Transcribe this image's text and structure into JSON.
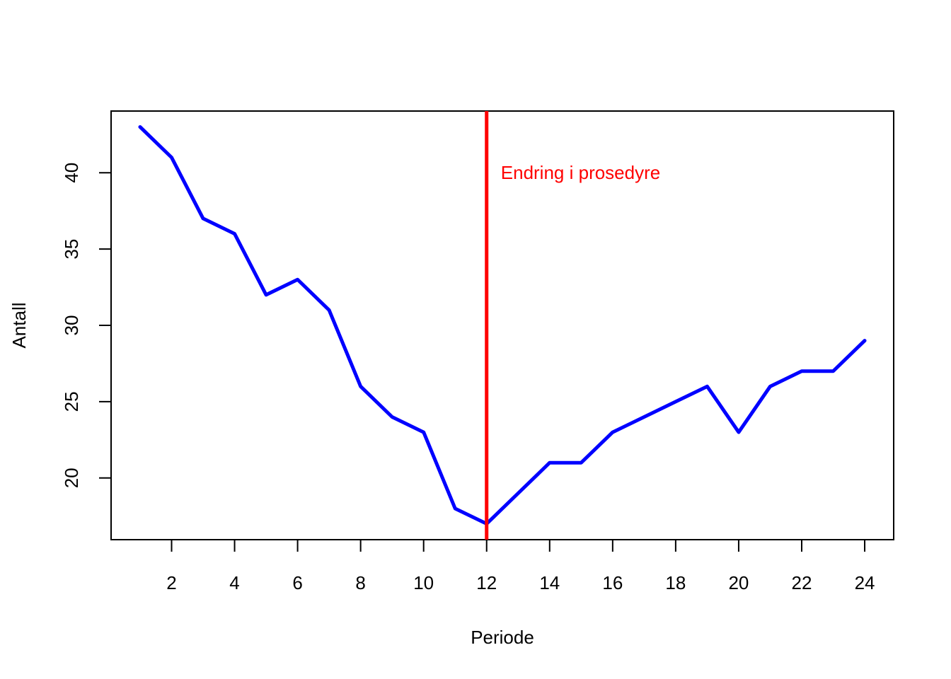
{
  "chart_data": {
    "type": "line",
    "x": [
      1,
      2,
      3,
      4,
      5,
      6,
      7,
      8,
      9,
      10,
      11,
      12,
      13,
      14,
      15,
      16,
      17,
      18,
      19,
      20,
      21,
      22,
      23,
      24
    ],
    "series": [
      {
        "values": [
          43,
          41,
          37,
          36,
          32,
          33,
          31,
          26,
          24,
          23,
          18,
          17,
          19,
          21,
          21,
          23,
          24,
          25,
          26,
          23,
          26,
          27,
          27,
          29
        ],
        "color": "#0000ff"
      }
    ],
    "xlabel": "Periode",
    "ylabel": "Antall",
    "xticks": [
      2,
      4,
      6,
      8,
      10,
      12,
      14,
      16,
      18,
      20,
      22,
      24
    ],
    "yticks": [
      20,
      25,
      30,
      35,
      40
    ],
    "xlim": [
      0.08,
      24.92
    ],
    "ylim": [
      15.96,
      44.04
    ],
    "grid": false,
    "annotations": [
      {
        "type": "vline",
        "x": 12,
        "color": "#ff0000",
        "label": "Endring i prosedyre",
        "label_x": 12.45,
        "label_y": 40
      }
    ]
  }
}
